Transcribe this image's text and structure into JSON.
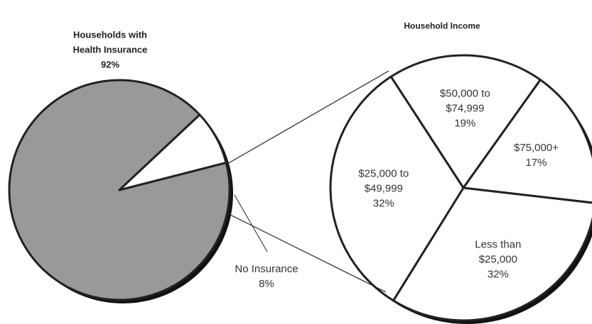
{
  "chart_data": [
    {
      "type": "pie",
      "categories": [
        "Households with Health Insurance",
        "No Insurance"
      ],
      "values": [
        92,
        8
      ],
      "value_labels": [
        "92%",
        "8%"
      ],
      "colors": [
        "#999999",
        "#ffffff"
      ]
    },
    {
      "type": "pie",
      "title": "Household Income",
      "categories": [
        "$50,000 to $74,999",
        "$75,000+",
        "Less than $25,000",
        "$25,000 to $49,999"
      ],
      "values": [
        19,
        17,
        32,
        32
      ],
      "value_labels": [
        "19%",
        "17%",
        "32%",
        "32%"
      ],
      "colors": [
        "#ffffff",
        "#ffffff",
        "#ffffff",
        "#ffffff"
      ]
    }
  ]
}
